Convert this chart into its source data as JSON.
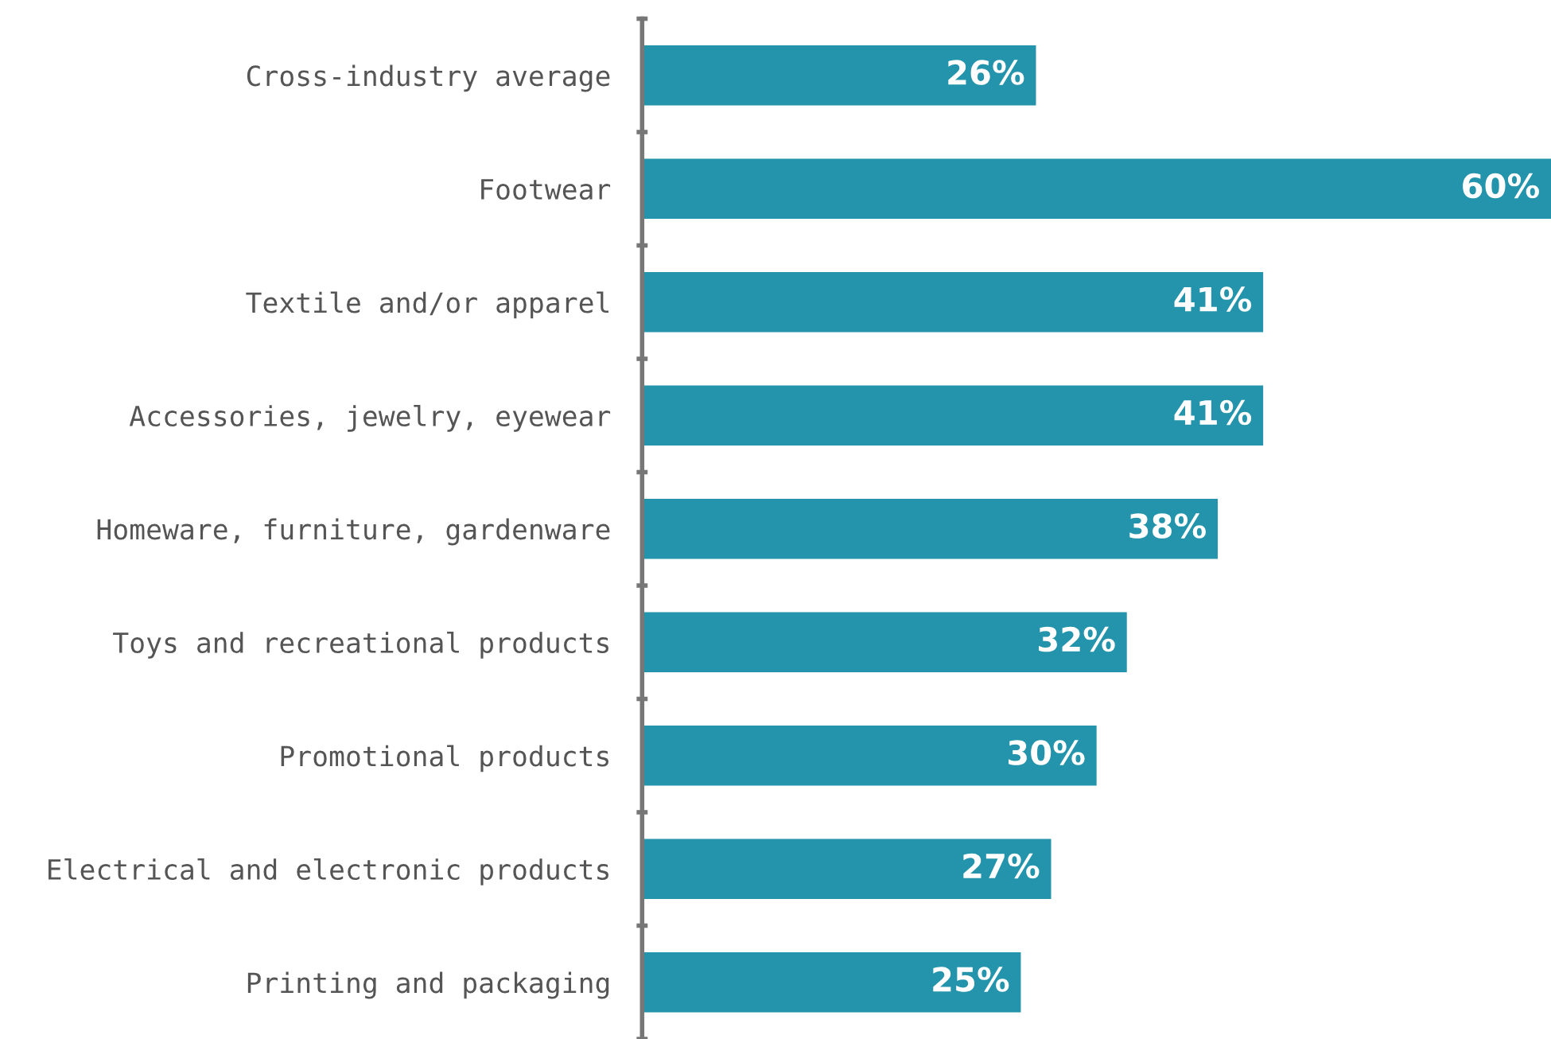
{
  "chart_data": {
    "type": "bar",
    "orientation": "horizontal",
    "categories": [
      "Cross-industry average",
      "Footwear",
      "Textile and/or apparel",
      "Accessories, jewelry, eyewear",
      "Homeware, furniture, gardenware",
      "Toys and recreational products",
      "Promotional products",
      "Electrical and electronic products",
      "Printing and packaging"
    ],
    "values": [
      26,
      60,
      41,
      41,
      38,
      32,
      30,
      27,
      25
    ],
    "value_labels": [
      "26%",
      "60%",
      "41%",
      "41%",
      "38%",
      "32%",
      "30%",
      "27%",
      "25%"
    ],
    "color": "#2394ab",
    "grid": false,
    "legend": false
  }
}
